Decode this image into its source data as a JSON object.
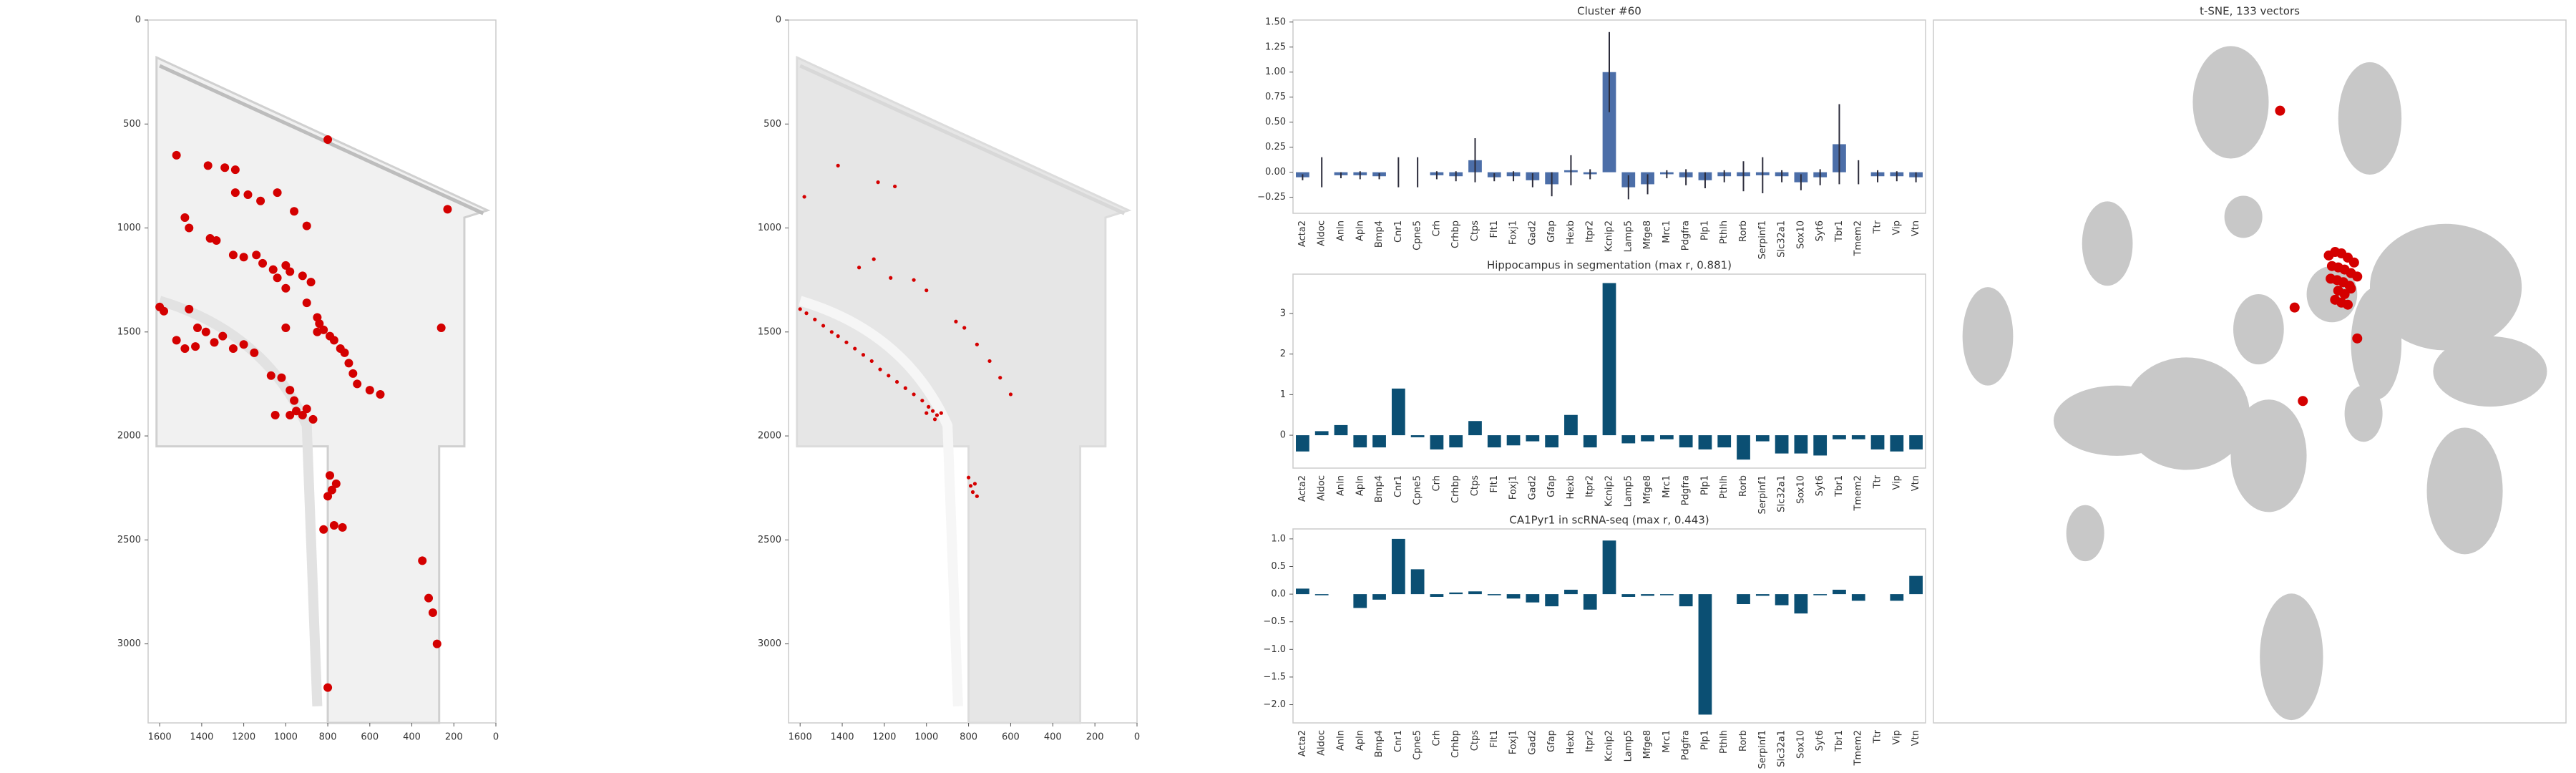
{
  "chart_data": [
    {
      "type": "scatter",
      "color": "#d40000",
      "xlim": [
        1655,
        0
      ],
      "ylim": [
        3380,
        0
      ],
      "xticks": [
        1600,
        1400,
        1200,
        1000,
        800,
        600,
        400,
        200,
        0
      ],
      "yticks": [
        0,
        500,
        1000,
        1500,
        2000,
        2500,
        3000
      ],
      "x": [
        1520,
        1370,
        1290,
        1240,
        1180,
        1240,
        1120,
        1040,
        960,
        800,
        900,
        1480,
        1460,
        1360,
        1330,
        1250,
        1200,
        1140,
        1110,
        1060,
        1000,
        980,
        920,
        880,
        1040,
        1600,
        1580,
        1460,
        1420,
        1380,
        1340,
        1300,
        1250,
        1200,
        1150,
        1520,
        1480,
        1430,
        1000,
        1000,
        900,
        850,
        840,
        820,
        850,
        790,
        770,
        740,
        720,
        700,
        680,
        660,
        600,
        550,
        260,
        230,
        1070,
        1020,
        980,
        960,
        950,
        920,
        900,
        980,
        1050,
        870,
        790,
        760,
        780,
        800,
        770,
        820,
        730,
        350,
        320,
        300,
        280,
        800
      ],
      "y": [
        650,
        700,
        710,
        720,
        840,
        830,
        870,
        830,
        920,
        575,
        990,
        950,
        1000,
        1050,
        1060,
        1130,
        1140,
        1130,
        1170,
        1200,
        1180,
        1210,
        1230,
        1260,
        1240,
        1380,
        1400,
        1390,
        1480,
        1500,
        1550,
        1520,
        1580,
        1560,
        1600,
        1540,
        1580,
        1570,
        1290,
        1480,
        1360,
        1430,
        1460,
        1490,
        1500,
        1520,
        1540,
        1580,
        1600,
        1650,
        1700,
        1750,
        1780,
        1800,
        1480,
        910,
        1710,
        1720,
        1780,
        1830,
        1880,
        1900,
        1870,
        1900,
        1900,
        1920,
        2190,
        2230,
        2260,
        2290,
        2430,
        2450,
        2440,
        2600,
        2780,
        2850,
        3000,
        3210
      ]
    },
    {
      "type": "scatter",
      "color": "#d40000",
      "xlim": [
        1655,
        0
      ],
      "ylim": [
        3380,
        0
      ],
      "xticks": [
        1600,
        1400,
        1200,
        1000,
        800,
        600,
        400,
        200,
        0
      ],
      "yticks": [
        0,
        500,
        1000,
        1500,
        2000,
        2500,
        3000
      ],
      "x": [
        1600,
        1570,
        1530,
        1490,
        1450,
        1420,
        1380,
        1340,
        1300,
        1260,
        1220,
        1180,
        1140,
        1100,
        1060,
        1020,
        990,
        970,
        950,
        930,
        960,
        1000,
        800,
        790,
        780,
        770,
        760,
        1320,
        1250,
        1170,
        1060,
        1000,
        860,
        820,
        760,
        700,
        650,
        1580,
        1420,
        1230,
        1150,
        600
      ],
      "y": [
        1390,
        1410,
        1440,
        1470,
        1500,
        1520,
        1550,
        1580,
        1610,
        1640,
        1680,
        1710,
        1740,
        1770,
        1800,
        1830,
        1860,
        1880,
        1900,
        1890,
        1920,
        1890,
        2200,
        2240,
        2270,
        2230,
        2290,
        1190,
        1150,
        1240,
        1250,
        1300,
        1450,
        1480,
        1560,
        1640,
        1720,
        850,
        700,
        780,
        800,
        1800
      ]
    },
    {
      "type": "bar",
      "title": "Cluster #60",
      "color": "#4c6ea8",
      "categories": [
        "Acta2",
        "Aldoc",
        "Anln",
        "Apln",
        "Bmp4",
        "Cnr1",
        "Cpne5",
        "Crh",
        "Crhbp",
        "Ctps",
        "Flt1",
        "Foxj1",
        "Gad2",
        "Gfap",
        "Hexb",
        "Itpr2",
        "Kcnip2",
        "Lamp5",
        "Mfge8",
        "Mrc1",
        "Pdgfra",
        "Plp1",
        "Pthlh",
        "Rorb",
        "Serpinf1",
        "Slc32a1",
        "Sox10",
        "Syt6",
        "Tbr1",
        "Tmem2",
        "Ttr",
        "Vip",
        "Vtn"
      ],
      "values": [
        -0.05,
        0,
        -0.03,
        -0.03,
        -0.04,
        0,
        0,
        -0.03,
        -0.04,
        0.12,
        -0.05,
        -0.04,
        -0.08,
        -0.12,
        0.02,
        -0.02,
        1.0,
        -0.15,
        -0.12,
        -0.02,
        -0.05,
        -0.08,
        -0.04,
        -0.04,
        -0.03,
        -0.04,
        -0.1,
        -0.05,
        0.28,
        0,
        -0.04,
        -0.04,
        -0.05
      ],
      "errors": [
        0.03,
        0.15,
        0.03,
        0.04,
        0.03,
        0.15,
        0.15,
        0.04,
        0.05,
        0.22,
        0.04,
        0.05,
        0.07,
        0.12,
        0.15,
        0.05,
        0.4,
        0.12,
        0.1,
        0.04,
        0.08,
        0.08,
        0.06,
        0.15,
        0.18,
        0.06,
        0.08,
        0.08,
        0.4,
        0.12,
        0.06,
        0.05,
        0.05
      ],
      "ylim": [
        -0.41,
        1.52
      ],
      "yticks": [
        {
          "value": -0.25,
          "label": "−0.25"
        },
        {
          "value": 0,
          "label": "0.00"
        },
        {
          "value": 0.25,
          "label": "0.25"
        },
        {
          "value": 0.5,
          "label": "0.50"
        },
        {
          "value": 0.75,
          "label": "0.75"
        },
        {
          "value": 1,
          "label": "1.00"
        },
        {
          "value": 1.25,
          "label": "1.25"
        },
        {
          "value": 1.5,
          "label": "1.50"
        }
      ]
    },
    {
      "type": "bar",
      "title": "Hippocampus in segmentation (max r, 0.881)",
      "color": "#0b4f73",
      "categories": [
        "Acta2",
        "Aldoc",
        "Anln",
        "Apln",
        "Bmp4",
        "Cnr1",
        "Cpne5",
        "Crh",
        "Crhbp",
        "Ctps",
        "Flt1",
        "Foxj1",
        "Gad2",
        "Gfap",
        "Hexb",
        "Itpr2",
        "Kcnip2",
        "Lamp5",
        "Mfge8",
        "Mrc1",
        "Pdgfra",
        "Plp1",
        "Pthlh",
        "Rorb",
        "Serpinf1",
        "Slc32a1",
        "Sox10",
        "Syt6",
        "Tbr1",
        "Tmem2",
        "Ttr",
        "Vip",
        "Vtn"
      ],
      "values": [
        -0.4,
        0.1,
        0.25,
        -0.3,
        -0.3,
        1.15,
        -0.05,
        -0.35,
        -0.3,
        0.35,
        -0.3,
        -0.25,
        -0.15,
        -0.3,
        0.5,
        -0.3,
        3.75,
        -0.2,
        -0.15,
        -0.1,
        -0.3,
        -0.35,
        -0.3,
        -0.6,
        -0.15,
        -0.45,
        -0.45,
        -0.5,
        -0.1,
        -0.1,
        -0.35,
        -0.4,
        -0.35
      ],
      "ylim": [
        -0.81,
        3.97
      ],
      "yticks": [
        0,
        1,
        2,
        3
      ]
    },
    {
      "type": "bar",
      "title": "CA1Pyr1 in scRNA-seq (max r, 0.443)",
      "color": "#0b4f73",
      "categories": [
        "Acta2",
        "Aldoc",
        "Anln",
        "Apln",
        "Bmp4",
        "Cnr1",
        "Cpne5",
        "Crh",
        "Crhbp",
        "Ctps",
        "Flt1",
        "Foxj1",
        "Gad2",
        "Gfap",
        "Hexb",
        "Itpr2",
        "Kcnip2",
        "Lamp5",
        "Mfge8",
        "Mrc1",
        "Pdgfra",
        "Plp1",
        "Pthlh",
        "Rorb",
        "Serpinf1",
        "Slc32a1",
        "Sox10",
        "Syt6",
        "Tbr1",
        "Tmem2",
        "Ttr",
        "Vip",
        "Vtn"
      ],
      "values": [
        0.1,
        -0.02,
        0,
        -0.25,
        -0.1,
        1.0,
        0.45,
        -0.05,
        0.03,
        0.05,
        -0.02,
        -0.08,
        -0.15,
        -0.22,
        0.08,
        -0.28,
        0.97,
        -0.05,
        -0.03,
        -0.02,
        -0.22,
        -2.18,
        0,
        -0.18,
        -0.03,
        -0.2,
        -0.35,
        -0.02,
        0.08,
        -0.12,
        0,
        -0.12,
        0.33
      ],
      "ylim": [
        -2.33,
        1.18
      ],
      "yticks": [
        {
          "value": -2,
          "label": "−2.0"
        },
        {
          "value": -1.5,
          "label": "−1.5"
        },
        {
          "value": -1,
          "label": "−1.0"
        },
        {
          "value": -0.5,
          "label": "−0.5"
        },
        {
          "value": 0,
          "label": "0.0"
        },
        {
          "value": 0.5,
          "label": "0.5"
        },
        {
          "value": 1,
          "label": "1.0"
        }
      ]
    },
    {
      "type": "scatter",
      "title": "t-SNE, 133 vectors",
      "color": "#d40000",
      "xlim": [
        0,
        100
      ],
      "ylim": [
        100,
        0
      ],
      "x": [
        62.5,
        63.5,
        64.5,
        65.5,
        66.5,
        63,
        64,
        65,
        66,
        67,
        62.8,
        63.8,
        64.8,
        65.8,
        64,
        65,
        66,
        63.5,
        64.5,
        65.5,
        54.8,
        57.1,
        67,
        58.4
      ],
      "y": [
        33.5,
        33,
        33.2,
        33.8,
        34.5,
        35,
        35.2,
        35.5,
        36,
        36.5,
        36.8,
        37,
        37.3,
        37.8,
        38.5,
        39,
        38.2,
        39.8,
        40.2,
        40.5,
        12.9,
        40.9,
        45.3,
        54.2
      ]
    }
  ]
}
